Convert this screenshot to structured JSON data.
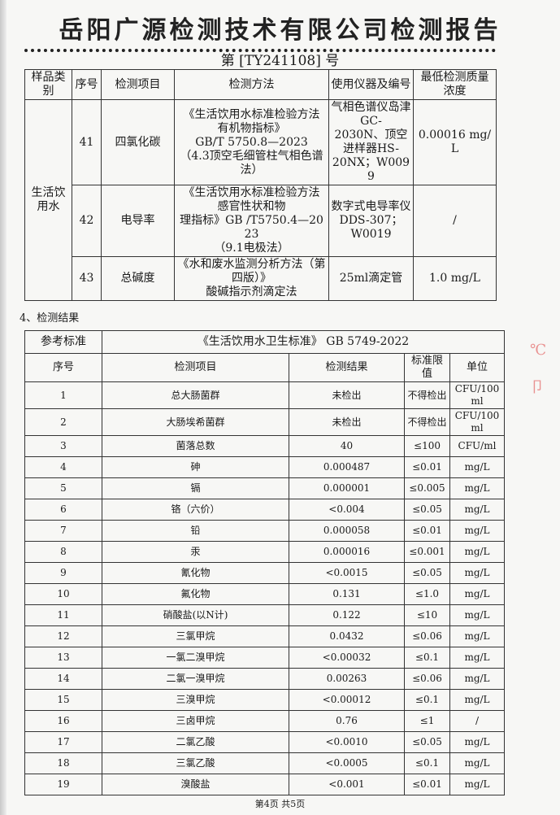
{
  "title": "岳阳广源检测技术有限公司检测报告",
  "report_no": "第 [TY241108] 号",
  "methods_table": {
    "headers": [
      "样品类别",
      "序号",
      "检测项目",
      "检测方法",
      "使用仪器及编号",
      "最低检测质量浓度"
    ],
    "category": "生活饮用水",
    "rows": [
      {
        "no": "41",
        "item": "四氯化碳",
        "method": [
          "《生活饮用水标准检验方法 有机物指标》",
          "GB/T 5750.8—2023",
          "（4.3顶空毛细管柱气相色谱法）"
        ],
        "instrument": [
          "气相色谱仪岛津GC-",
          "2030N、顶空进样器HS-",
          "20NX；W0099"
        ],
        "limit": "0.00016 mg/L"
      },
      {
        "no": "42",
        "item": "电导率",
        "method": [
          "《生活饮用水标准检验方法 感官性状和物",
          "理指标》GB /T5750.4—2023",
          "（9.1电极法）"
        ],
        "instrument": [
          "数字式电导率仪",
          "DDS-307；",
          "W0019"
        ],
        "limit": "/"
      },
      {
        "no": "43",
        "item": "总碱度",
        "method": [
          "《水和废水监测分析方法（第四版）》",
          "酸碱指示剂滴定法"
        ],
        "instrument": [
          "25ml滴定管"
        ],
        "limit": "1.0 mg/L"
      }
    ]
  },
  "section_title": "4、检测结果",
  "results_table": {
    "standard_label": "参考标准",
    "standard": "《生活饮用水卫生标准》 GB 5749-2022",
    "headers": [
      "序号",
      "检测项目",
      "检测结果",
      "标准限值",
      "单位"
    ],
    "rows": [
      [
        "1",
        "总大肠菌群",
        "未检出",
        "不得检出",
        "CFU/100ml"
      ],
      [
        "2",
        "大肠埃希菌群",
        "未检出",
        "不得检出",
        "CFU/100ml"
      ],
      [
        "3",
        "菌落总数",
        "40",
        "≤100",
        "CFU/ml"
      ],
      [
        "4",
        "砷",
        "0.000487",
        "≤0.01",
        "mg/L"
      ],
      [
        "5",
        "镉",
        "0.000001",
        "≤0.005",
        "mg/L"
      ],
      [
        "6",
        "铬（六价）",
        "<0.004",
        "≤0.05",
        "mg/L"
      ],
      [
        "7",
        "铅",
        "0.000058",
        "≤0.01",
        "mg/L"
      ],
      [
        "8",
        "汞",
        "0.000016",
        "≤0.001",
        "mg/L"
      ],
      [
        "9",
        "氰化物",
        "<0.0015",
        "≤0.05",
        "mg/L"
      ],
      [
        "10",
        "氟化物",
        "0.131",
        "≤1.0",
        "mg/L"
      ],
      [
        "11",
        "硝酸盐(以N计)",
        "0.122",
        "≤10",
        "mg/L"
      ],
      [
        "12",
        "三氯甲烷",
        "0.0432",
        "≤0.06",
        "mg/L"
      ],
      [
        "13",
        "一氯二溴甲烷",
        "<0.00032",
        "≤0.1",
        "mg/L"
      ],
      [
        "14",
        "二氯一溴甲烷",
        "0.00263",
        "≤0.06",
        "mg/L"
      ],
      [
        "15",
        "三溴甲烷",
        "<0.00012",
        "≤0.1",
        "mg/L"
      ],
      [
        "16",
        "三卤甲烷",
        "0.76",
        "≤1",
        "/"
      ],
      [
        "17",
        "二氯乙酸",
        "<0.0010",
        "≤0.05",
        "mg/L"
      ],
      [
        "18",
        "三氯乙酸",
        "<0.0005",
        "≤0.1",
        "mg/L"
      ],
      [
        "19",
        "溴酸盐",
        "<0.001",
        "≤0.01",
        "mg/L"
      ]
    ]
  },
  "footer": "第4页  共5页"
}
